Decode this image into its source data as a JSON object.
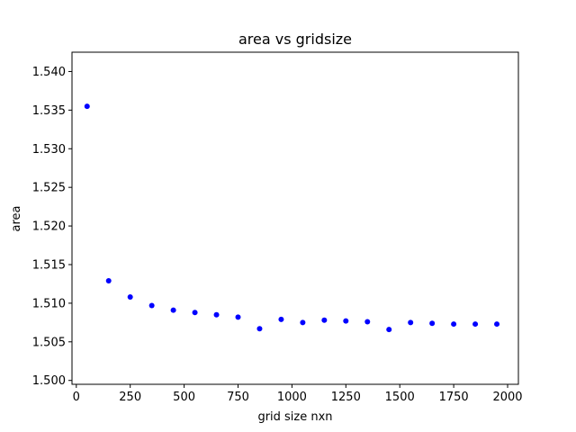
{
  "chart_data": {
    "type": "scatter",
    "title": "area vs gridsize",
    "xlabel": "grid size nxn",
    "ylabel": "area",
    "xlim": [
      -20,
      2050
    ],
    "ylim": [
      1.4995,
      1.5425
    ],
    "xticks": [
      0,
      250,
      500,
      750,
      1000,
      1250,
      1500,
      1750,
      2000
    ],
    "yticks": [
      1.5,
      1.505,
      1.51,
      1.515,
      1.52,
      1.525,
      1.53,
      1.535,
      1.54
    ],
    "xtick_labels": [
      "0",
      "250",
      "500",
      "750",
      "1000",
      "1250",
      "1500",
      "1750",
      "2000"
    ],
    "ytick_labels": [
      "1.500",
      "1.505",
      "1.510",
      "1.515",
      "1.520",
      "1.525",
      "1.530",
      "1.535",
      "1.540"
    ],
    "grid": false,
    "marker_color": "#0000ff",
    "x": [
      50,
      150,
      250,
      350,
      450,
      550,
      650,
      750,
      850,
      950,
      1050,
      1150,
      1250,
      1350,
      1450,
      1550,
      1650,
      1750,
      1850,
      1950
    ],
    "y": [
      1.5355,
      1.5129,
      1.5108,
      1.5097,
      1.5091,
      1.5088,
      1.5085,
      1.5082,
      1.5067,
      1.5079,
      1.5075,
      1.5078,
      1.5077,
      1.5076,
      1.5066,
      1.5075,
      1.5074,
      1.5073,
      1.5073,
      1.5073
    ]
  }
}
